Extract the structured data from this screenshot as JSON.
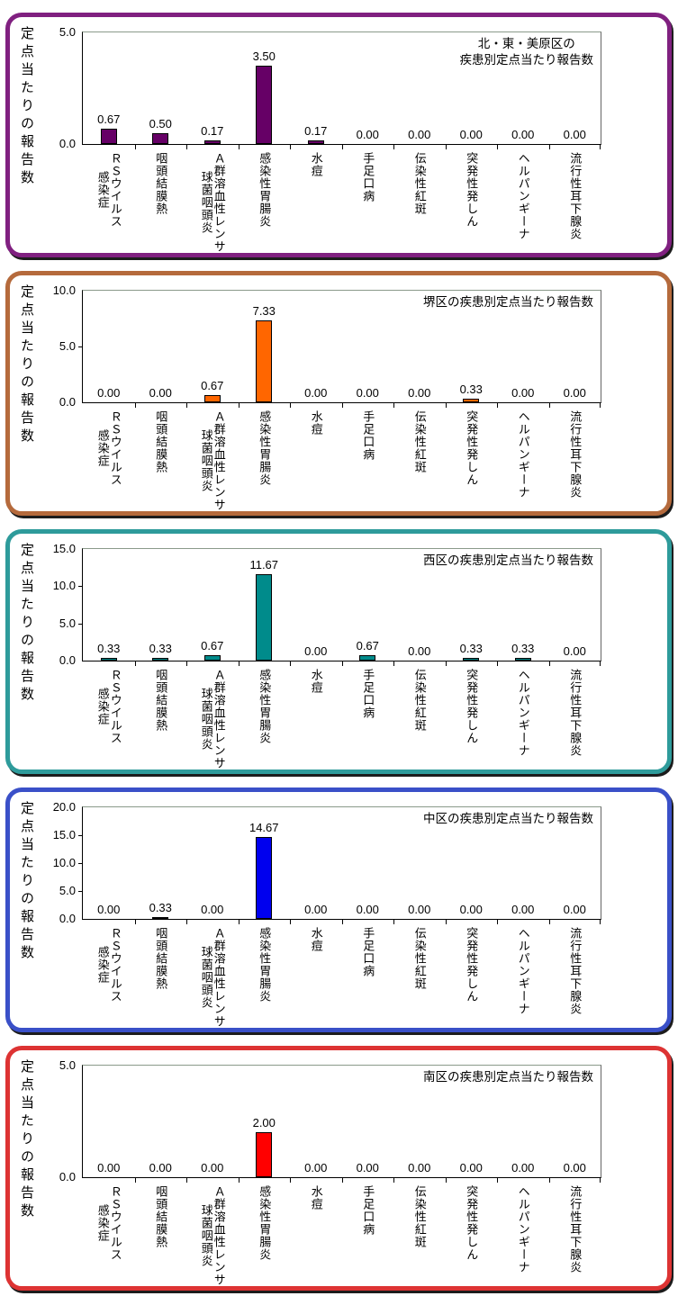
{
  "shared": {
    "ylabel": "定点当たりの報告数",
    "categories": [
      "ＲＳウイルス\n感染症",
      "咽頭結膜熱",
      "Ａ群溶血性レンサ\n球菌咽頭炎",
      "感染性胃腸炎",
      "水痘",
      "手足口病",
      "伝染性紅斑",
      "突発性発しん",
      "ヘルパンギーナ",
      "流行性耳下腺炎"
    ],
    "background": "#FFFFFF",
    "axis_color": "#000000"
  },
  "chart_data": [
    {
      "type": "bar",
      "title": "北・東・美原区の\n疾患別定点当たり報告数",
      "region": "北・東・美原区",
      "xlabel": "",
      "ylabel": "定点当たりの報告数",
      "ylim": [
        0,
        5
      ],
      "yticks": [
        "0.0",
        "5.0"
      ],
      "grid": false,
      "legend": "none",
      "bar_color": "#660066",
      "box_border_color": "#802080",
      "values": [
        0.67,
        0.5,
        0.17,
        3.5,
        0.17,
        0.0,
        0.0,
        0.0,
        0.0,
        0.0
      ]
    },
    {
      "type": "bar",
      "title": "堺区の疾患別定点当たり報告数",
      "region": "堺区",
      "xlabel": "",
      "ylabel": "定点当たりの報告数",
      "ylim": [
        0,
        10
      ],
      "yticks": [
        "0.0",
        "5.0",
        "10.0"
      ],
      "grid": false,
      "legend": "none",
      "bar_color": "#FF6600",
      "box_border_color": "#B56A3C",
      "values": [
        0.0,
        0.0,
        0.67,
        7.33,
        0.0,
        0.0,
        0.0,
        0.33,
        0.0,
        0.0
      ]
    },
    {
      "type": "bar",
      "title": "西区の疾患別定点当たり報告数",
      "region": "西区",
      "xlabel": "",
      "ylabel": "定点当たりの報告数",
      "ylim": [
        0,
        15
      ],
      "yticks": [
        "0.0",
        "5.0",
        "10.0",
        "15.0"
      ],
      "grid": false,
      "legend": "none",
      "bar_color": "#008B8B",
      "box_border_color": "#2E9B9B",
      "values": [
        0.33,
        0.33,
        0.67,
        11.67,
        0.0,
        0.67,
        0.0,
        0.33,
        0.33,
        0.0
      ]
    },
    {
      "type": "bar",
      "title": "中区の疾患別定点当たり報告数",
      "region": "中区",
      "xlabel": "",
      "ylabel": "定点当たりの報告数",
      "ylim": [
        0,
        20
      ],
      "yticks": [
        "0.0",
        "5.0",
        "10.0",
        "15.0",
        "20.0"
      ],
      "grid": false,
      "legend": "none",
      "bar_color": "#0000EE",
      "box_border_color": "#3A50C8",
      "values": [
        0.0,
        0.33,
        0.0,
        14.67,
        0.0,
        0.0,
        0.0,
        0.0,
        0.0,
        0.0
      ]
    },
    {
      "type": "bar",
      "title": "南区の疾患別定点当たり報告数",
      "region": "南区",
      "xlabel": "",
      "ylabel": "定点当たりの報告数",
      "ylim": [
        0,
        5
      ],
      "yticks": [
        "0.0",
        "5.0"
      ],
      "grid": false,
      "legend": "none",
      "bar_color": "#FF0000",
      "box_border_color": "#DD3333",
      "values": [
        0.0,
        0.0,
        0.0,
        2.0,
        0.0,
        0.0,
        0.0,
        0.0,
        0.0,
        0.0
      ]
    }
  ]
}
